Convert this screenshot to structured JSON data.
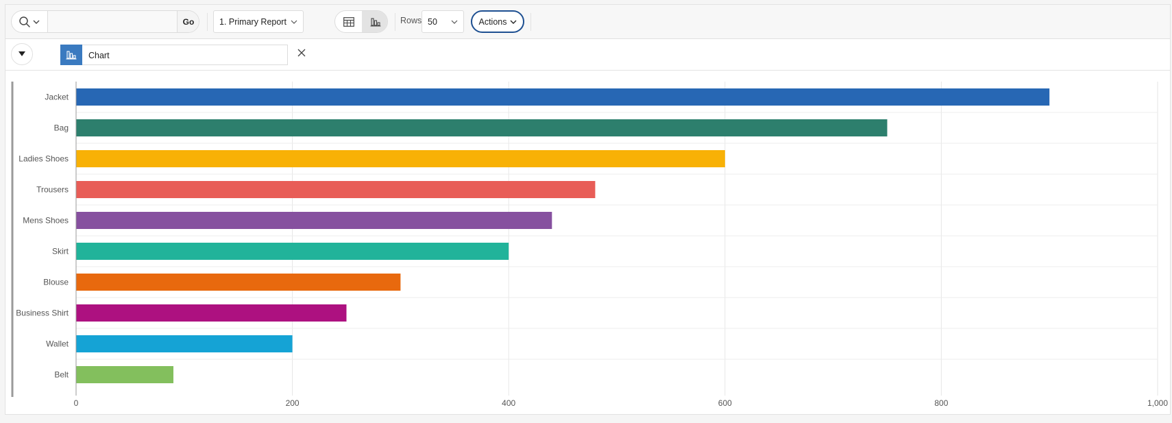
{
  "toolbar": {
    "go_label": "Go",
    "search_placeholder": "",
    "report_select": "1. Primary Report",
    "rows_label": "Rows",
    "rows_value": "50",
    "actions_label": "Actions"
  },
  "filter": {
    "chip_label": "Chart"
  },
  "colors": {
    "accent": "#1d4f91",
    "chip_icon_bg": "#3a7ac0"
  },
  "chart_data": {
    "type": "bar",
    "orientation": "horizontal",
    "categories": [
      "Jacket",
      "Bag",
      "Ladies Shoes",
      "Trousers",
      "Mens Shoes",
      "Skirt",
      "Blouse",
      "Business Shirt",
      "Wallet",
      "Belt"
    ],
    "values": [
      900,
      750,
      600,
      480,
      440,
      400,
      300,
      250,
      200,
      90
    ],
    "colors": [
      "#2767b4",
      "#2d7f6d",
      "#f8b106",
      "#e85d57",
      "#86509f",
      "#21b39a",
      "#e8690e",
      "#ad1180",
      "#15a3d5",
      "#83bf5d"
    ],
    "xlim": [
      0,
      1000
    ],
    "x_ticks": [
      "0",
      "200",
      "400",
      "600",
      "800",
      "1,000"
    ],
    "x_tick_values": [
      0,
      200,
      400,
      600,
      800,
      1000
    ],
    "grid": true,
    "title": "",
    "xlabel": "",
    "ylabel": ""
  }
}
